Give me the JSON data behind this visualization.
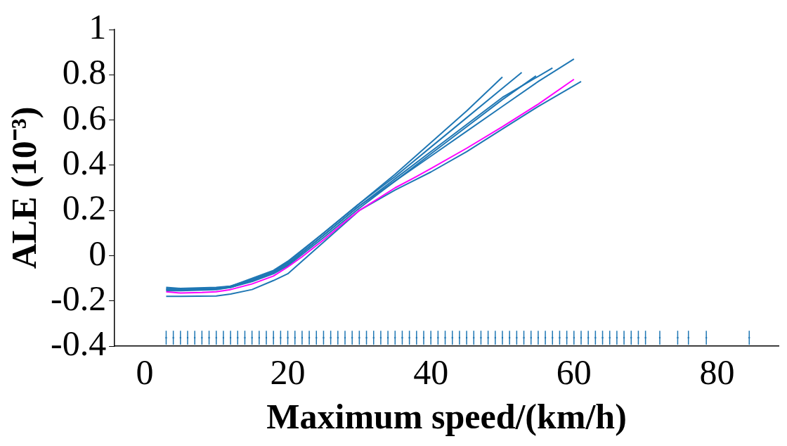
{
  "chart_data": {
    "type": "line",
    "xlabel": "Maximum speed/(km/h)",
    "ylabel": "ALE (10⁻³)",
    "xlim": [
      -4.2,
      88.6
    ],
    "xticks": [
      0,
      20,
      40,
      60,
      80
    ],
    "ylim": [
      -0.4,
      1.0
    ],
    "yticks": [
      -0.4,
      -0.2,
      0.0,
      0.2,
      0.4,
      0.6,
      0.8,
      1.0
    ],
    "grid": false,
    "legend": false,
    "marker": "none",
    "series": [
      {
        "type": "scatter",
        "color": "#1f77b4",
        "x": [
          3,
          4,
          5,
          6,
          7,
          8,
          9,
          10,
          11,
          12,
          13,
          14,
          15,
          16,
          17,
          18,
          19,
          20,
          21,
          22,
          23,
          24,
          25,
          26,
          27,
          28,
          29,
          30,
          31,
          32,
          33,
          34,
          35,
          36,
          37,
          38,
          39,
          40,
          41,
          42,
          43,
          44,
          45,
          46,
          47,
          48,
          49,
          50,
          51,
          52,
          53,
          54,
          55,
          56,
          57,
          58,
          59,
          60,
          61,
          62,
          63,
          64,
          65,
          66,
          67,
          68,
          69,
          70,
          72,
          74.5,
          76,
          78.5,
          84.5
        ],
        "values": [
          -0.363,
          -0.363,
          -0.363,
          -0.363,
          -0.363,
          -0.363,
          -0.363,
          -0.363,
          -0.363,
          -0.363,
          -0.363,
          -0.363,
          -0.363,
          -0.363,
          -0.363,
          -0.363,
          -0.363,
          -0.363,
          -0.363,
          -0.363,
          -0.363,
          -0.363,
          -0.363,
          -0.363,
          -0.363,
          -0.363,
          -0.363,
          -0.363,
          -0.363,
          -0.363,
          -0.363,
          -0.363,
          -0.363,
          -0.363,
          -0.363,
          -0.363,
          -0.363,
          -0.363,
          -0.363,
          -0.363,
          -0.363,
          -0.363,
          -0.363,
          -0.363,
          -0.363,
          -0.363,
          -0.363,
          -0.363,
          -0.363,
          -0.363,
          -0.363,
          -0.363,
          -0.363,
          -0.363,
          -0.363,
          -0.363,
          -0.363,
          -0.363,
          -0.363,
          -0.363,
          -0.363,
          -0.363,
          -0.363,
          -0.363,
          -0.363,
          -0.363,
          -0.363,
          -0.363,
          -0.363,
          -0.363,
          -0.363,
          -0.363,
          -0.363
        ],
        "marker": "square",
        "errors": [
          0.031,
          0.031,
          0.031,
          0.031,
          0.031,
          0.031,
          0.031,
          0.031,
          0.031,
          0.031,
          0.031,
          0.031,
          0.031,
          0.031,
          0.031,
          0.031,
          0.031,
          0.031,
          0.031,
          0.031,
          0.031,
          0.031,
          0.031,
          0.031,
          0.031,
          0.031,
          0.031,
          0.031,
          0.031,
          0.031,
          0.031,
          0.031,
          0.031,
          0.031,
          0.031,
          0.031,
          0.031,
          0.031,
          0.031,
          0.031,
          0.031,
          0.031,
          0.031,
          0.031,
          0.031,
          0.031,
          0.031,
          0.031,
          0.031,
          0.031,
          0.031,
          0.031,
          0.031,
          0.031,
          0.031,
          0.031,
          0.031,
          0.031,
          0.031,
          0.031,
          0.031,
          0.031,
          0.031,
          0.031,
          0.031,
          0.031,
          0.031,
          0.031,
          0.031,
          0.031,
          0.031,
          0.031,
          0.031
        ]
      },
      {
        "color": "#1f77b4",
        "x": [
          3,
          5,
          10,
          12,
          15,
          18,
          20,
          25,
          30,
          35,
          40,
          45,
          50
        ],
        "values": [
          -0.14,
          -0.145,
          -0.14,
          -0.135,
          -0.105,
          -0.07,
          -0.03,
          0.1,
          0.23,
          0.36,
          0.5,
          0.64,
          0.79
        ]
      },
      {
        "color": "#1f77b4",
        "x": [
          3,
          5,
          10,
          12,
          15,
          18,
          20,
          25,
          30,
          35,
          40,
          45,
          50,
          54.7
        ],
        "values": [
          -0.15,
          -0.15,
          -0.148,
          -0.14,
          -0.11,
          -0.075,
          -0.04,
          0.09,
          0.22,
          0.33,
          0.45,
          0.57,
          0.69,
          0.795
        ]
      },
      {
        "color": "#1f77b4",
        "x": [
          3,
          5,
          10,
          12,
          15,
          18,
          20,
          25,
          30,
          35,
          40,
          45,
          50,
          55,
          60
        ],
        "values": [
          -0.155,
          -0.155,
          -0.15,
          -0.14,
          -0.115,
          -0.08,
          -0.045,
          0.08,
          0.21,
          0.33,
          0.44,
          0.55,
          0.66,
          0.77,
          0.87
        ]
      },
      {
        "color": "#1f77b4",
        "x": [
          3,
          5,
          10,
          12,
          15,
          18,
          20,
          25,
          30,
          35,
          40,
          45,
          50,
          55,
          61
        ],
        "values": [
          -0.18,
          -0.18,
          -0.178,
          -0.17,
          -0.15,
          -0.11,
          -0.08,
          0.06,
          0.2,
          0.29,
          0.37,
          0.46,
          0.56,
          0.66,
          0.77
        ]
      },
      {
        "color": "#1f77b4",
        "x": [
          3,
          5,
          10,
          12,
          15,
          18,
          20,
          25,
          30,
          35,
          40,
          45,
          50,
          57
        ],
        "values": [
          -0.145,
          -0.15,
          -0.145,
          -0.14,
          -0.11,
          -0.07,
          -0.035,
          0.09,
          0.22,
          0.34,
          0.46,
          0.58,
          0.7,
          0.83
        ]
      },
      {
        "color": "#1f77b4",
        "x": [
          3,
          5,
          10,
          12,
          15,
          18,
          20,
          25,
          30,
          35,
          40,
          45,
          50,
          52.7
        ],
        "values": [
          -0.15,
          -0.15,
          -0.145,
          -0.135,
          -0.1,
          -0.065,
          -0.025,
          0.1,
          0.23,
          0.35,
          0.48,
          0.61,
          0.74,
          0.81
        ]
      },
      {
        "color": "#ff00ff",
        "x": [
          3,
          5,
          8,
          10,
          12,
          15,
          18,
          20,
          22,
          25,
          28,
          30,
          32,
          35,
          38,
          40,
          45,
          50,
          55,
          60
        ],
        "values": [
          -0.16,
          -0.165,
          -0.163,
          -0.16,
          -0.15,
          -0.125,
          -0.09,
          -0.05,
          -0.005,
          0.07,
          0.15,
          0.2,
          0.24,
          0.3,
          0.35,
          0.385,
          0.475,
          0.57,
          0.67,
          0.78
        ]
      }
    ]
  }
}
